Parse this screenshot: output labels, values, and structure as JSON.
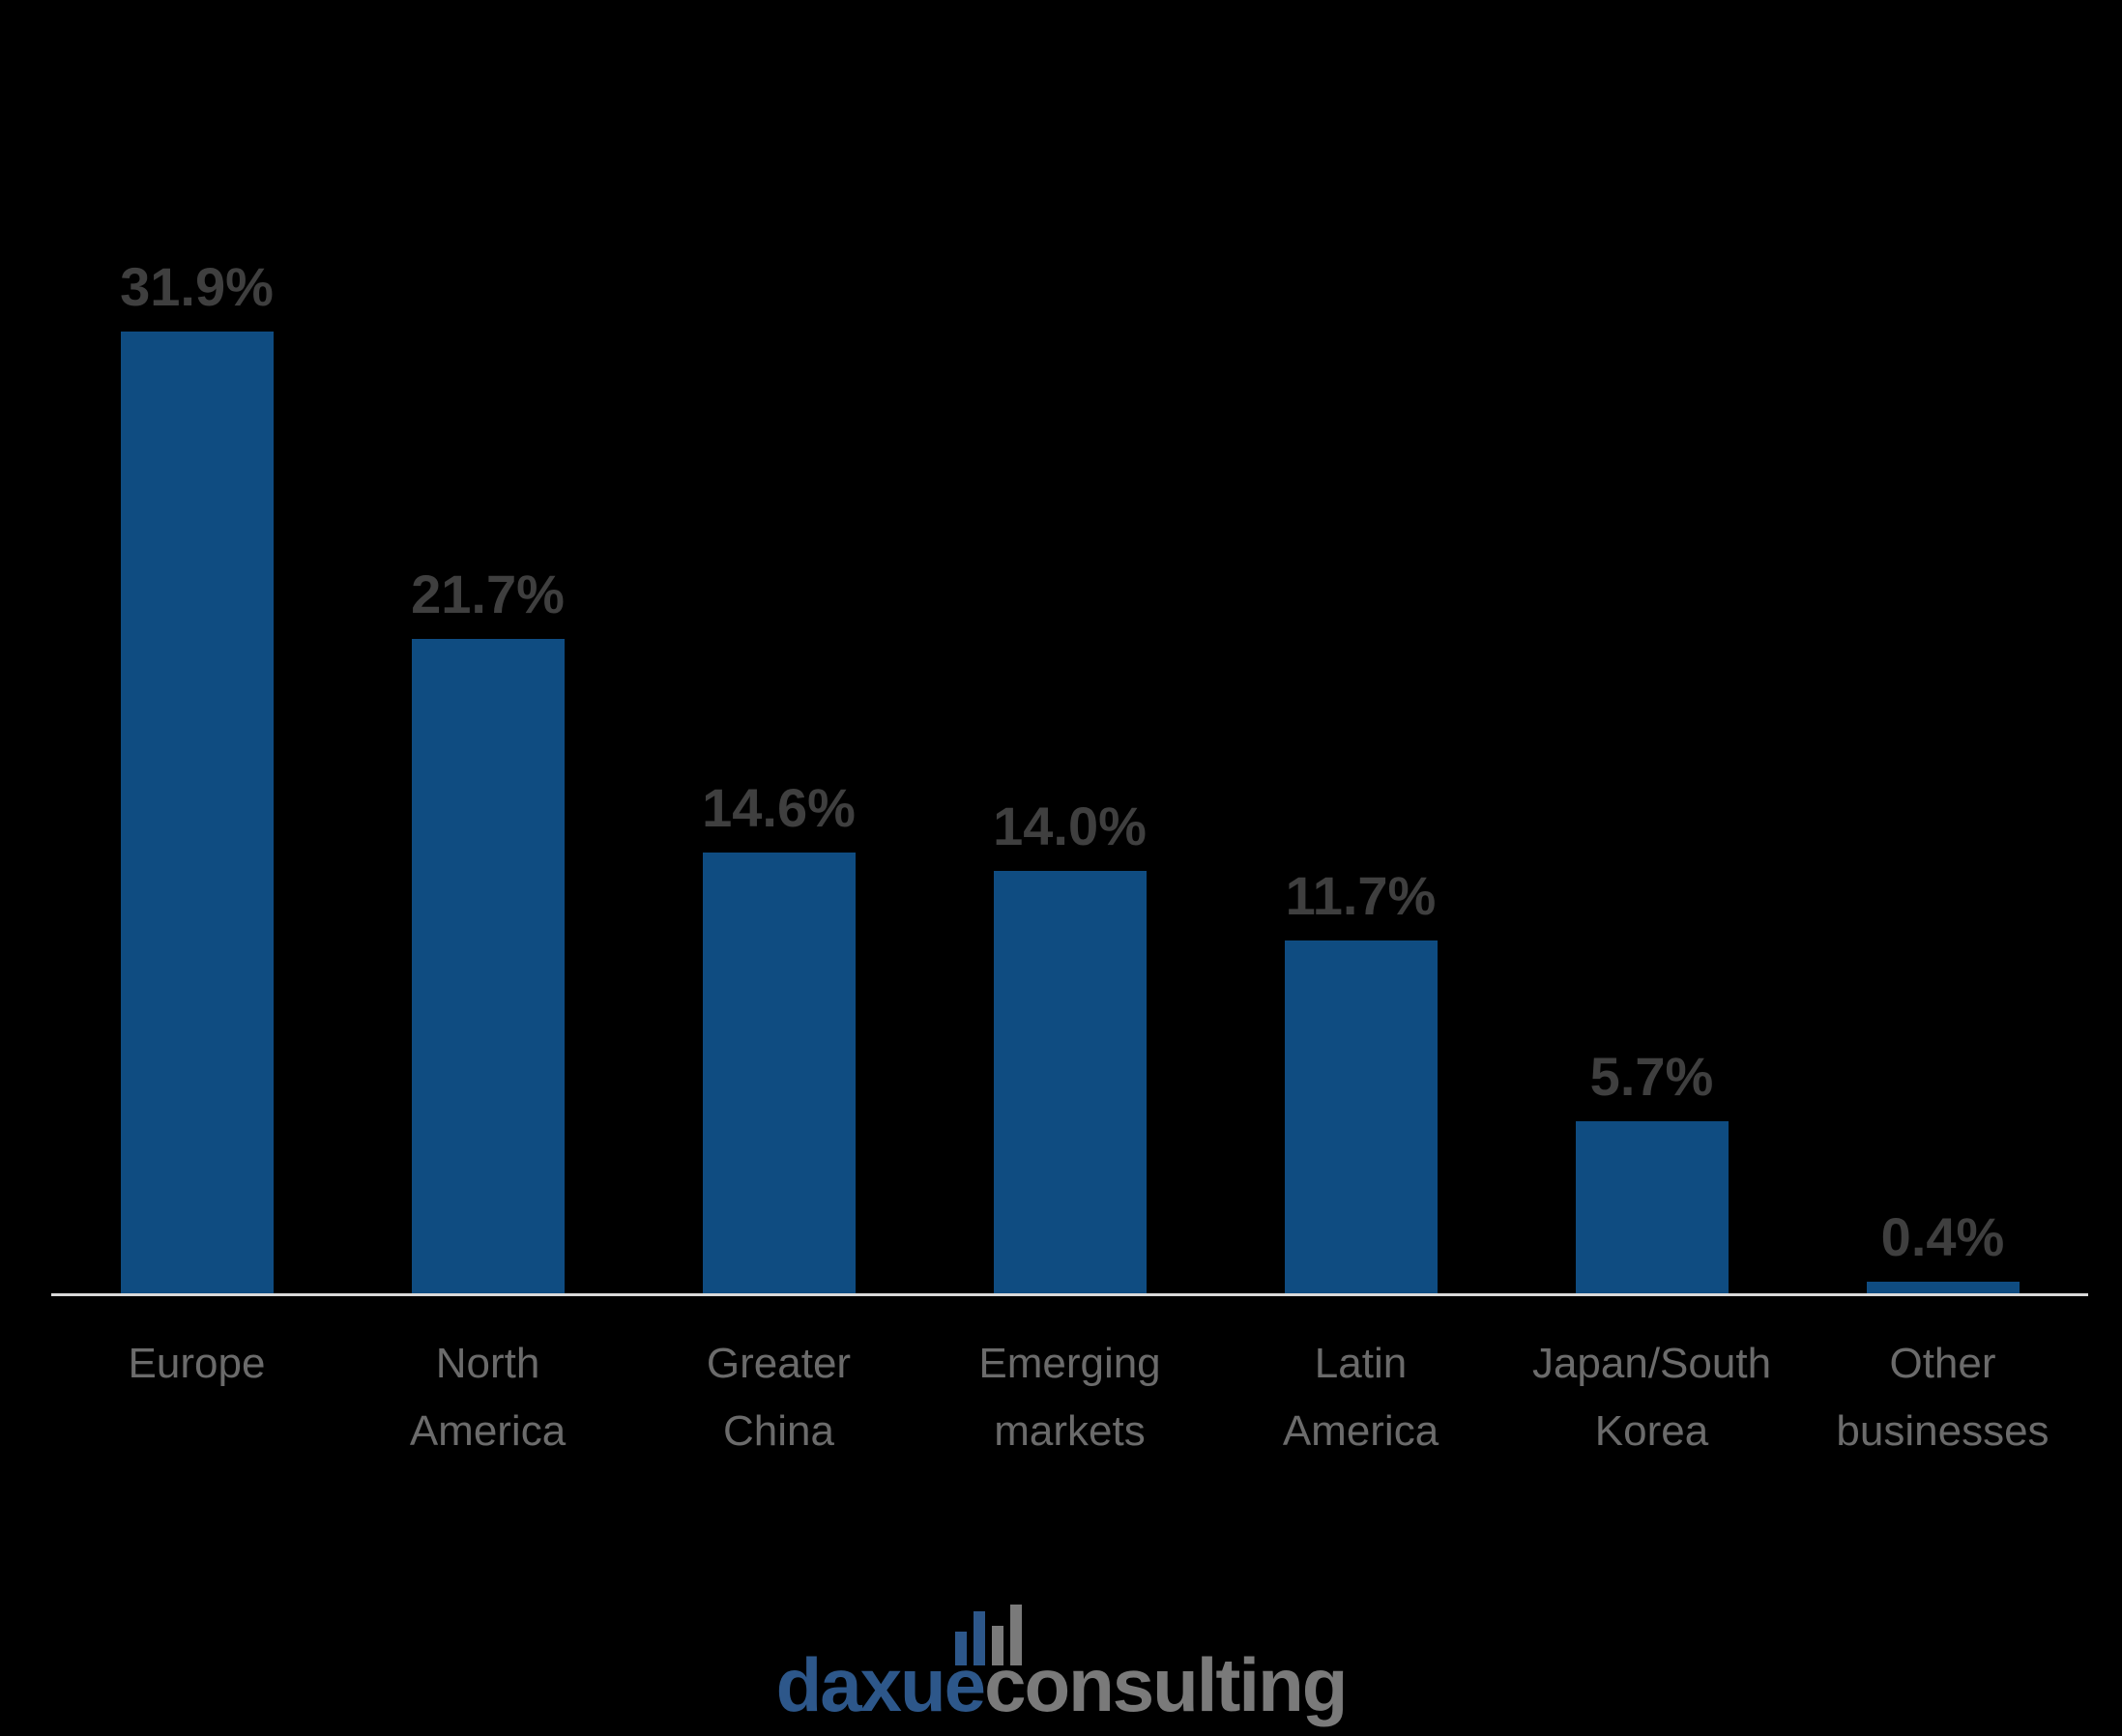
{
  "background_color": "#000000",
  "chart_data": {
    "type": "bar",
    "title": "",
    "orientation": "vertical",
    "categories": [
      "Europe",
      "North America",
      "Greater China",
      "Emerging markets",
      "Latin America",
      "Japan/South Korea",
      "Other businesses"
    ],
    "category_display": [
      "Europe",
      "North\nAmerica",
      "Greater\nChina",
      "Emerging\nmarkets",
      "Latin\nAmerica",
      "Japan/South\nKorea",
      "Other\nbusinesses"
    ],
    "values": [
      31.9,
      21.7,
      14.6,
      14.0,
      11.7,
      5.7,
      0.4
    ],
    "value_labels": [
      "31.9%",
      "21.7%",
      "14.6%",
      "14.0%",
      "11.7%",
      "5.7%",
      "0.4%"
    ],
    "ylim": [
      0,
      35
    ],
    "grid": false,
    "legend": false,
    "bar_color": "#0F4C81",
    "value_label_color": "#3F3F3F",
    "category_label_color": "#6B6B6B",
    "axis_line_color": "#D9D9D9"
  },
  "logo": {
    "icon_name": "bar-chart-icon",
    "icon_bar_colors": [
      "#2D578A",
      "#2D578A",
      "#7A7A7A",
      "#7A7A7A"
    ],
    "brand_left": "daxue",
    "brand_right": "consulting",
    "brand_left_color": "#2D578A",
    "brand_right_color": "#7A7A7A"
  }
}
